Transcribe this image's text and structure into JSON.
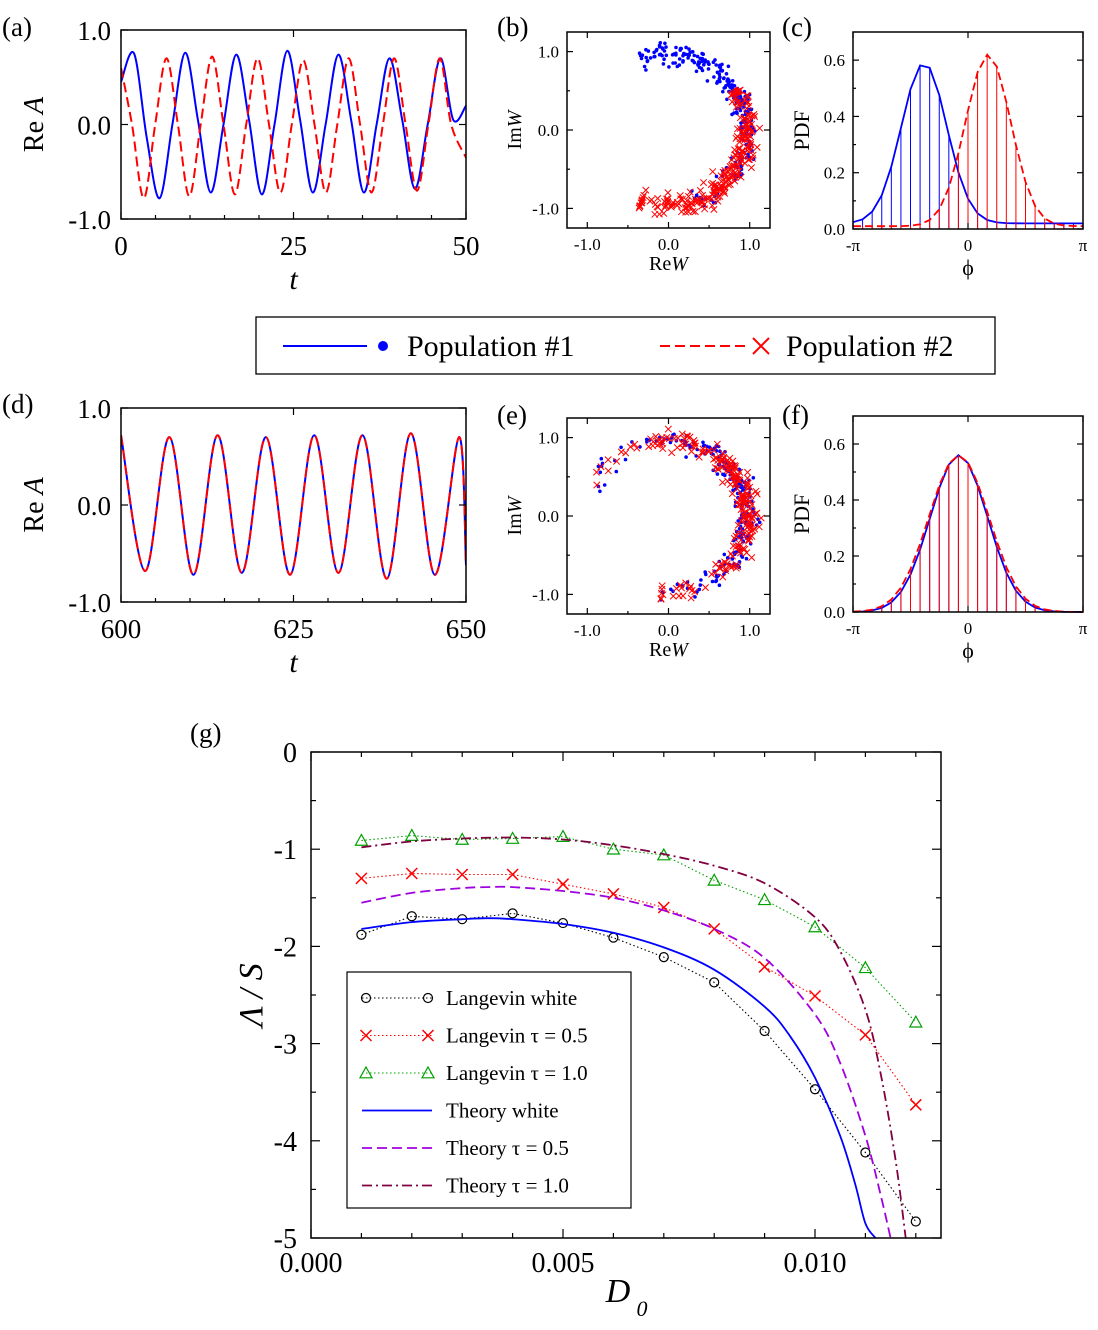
{
  "chart_data": [
    {
      "id": "a",
      "type": "line",
      "panel_label": "(a)",
      "xlabel": "t",
      "ylabel": "Re A",
      "xlim": [
        0,
        50
      ],
      "ylim": [
        -1.0,
        1.0
      ],
      "xticks": [
        "0",
        "25",
        "50"
      ],
      "yticks": [
        "1.0",
        "0.0",
        "-1.0"
      ],
      "series": [
        {
          "name": "Population #1",
          "color": "#0000ff",
          "dash": "solid",
          "x": [
            0,
            1.9,
            3.75,
            5.6,
            7.45,
            9.3,
            11.15,
            13.0,
            14.85,
            16.7,
            18.55,
            20.4,
            22.25,
            24.1,
            25.95,
            27.8,
            29.65,
            31.5,
            33.35,
            35.2,
            37.05,
            38.9,
            40.75,
            42.6,
            44.45,
            46.3,
            48.15,
            50
          ],
          "y": [
            0.45,
            0.75,
            -0.15,
            -0.78,
            0.0,
            0.76,
            0.05,
            -0.72,
            0.0,
            0.74,
            0.05,
            -0.74,
            0.0,
            0.78,
            0.05,
            -0.72,
            0.0,
            0.74,
            0.05,
            -0.72,
            0.0,
            0.7,
            0.05,
            -0.68,
            0.0,
            0.7,
            0.05,
            0.2
          ]
        },
        {
          "name": "Population #2",
          "color": "#ff0000",
          "dash": "dashed",
          "x": [
            0,
            1.6,
            3.3,
            4.95,
            6.6,
            8.25,
            9.9,
            11.55,
            13.2,
            14.85,
            16.5,
            18.15,
            19.8,
            21.45,
            23.1,
            24.75,
            26.4,
            28.05,
            29.7,
            31.35,
            33.0,
            34.65,
            36.3,
            37.95,
            39.6,
            41.25,
            42.9,
            44.55,
            46.2,
            47.85,
            50
          ],
          "y": [
            0.6,
            0.0,
            -0.78,
            0.0,
            0.7,
            0.0,
            -0.76,
            0.0,
            0.72,
            0.0,
            -0.74,
            0.0,
            0.7,
            0.0,
            -0.72,
            0.0,
            0.68,
            0.0,
            -0.72,
            0.0,
            0.7,
            0.0,
            -0.72,
            0.0,
            0.7,
            0.0,
            -0.7,
            0.0,
            0.7,
            0.0,
            -0.35
          ]
        }
      ]
    },
    {
      "id": "b",
      "type": "scatter",
      "panel_label": "(b)",
      "xlabel": "ReW",
      "ylabel": "ImW",
      "xlim": [
        -1.25,
        1.25
      ],
      "ylim": [
        -1.25,
        1.25
      ],
      "xticks": [
        "-1.0",
        "0.0",
        "1.0"
      ],
      "yticks": [
        "1.0",
        "0.0",
        "-1.0"
      ],
      "series": [
        {
          "name": "Population #1",
          "color": "#0000ff",
          "marker": "dot",
          "count": 260,
          "arc_deg": [
            -70,
            110
          ],
          "center_deg": 35,
          "spread_deg": 30
        },
        {
          "name": "Population #2",
          "color": "#ff0000",
          "marker": "x",
          "count": 240,
          "arc_deg": [
            -110,
            30
          ],
          "center_deg": -40,
          "spread_deg": 35
        }
      ]
    },
    {
      "id": "c",
      "type": "line",
      "panel_label": "(c)",
      "xlabel": "ϕ",
      "ylabel": "PDF",
      "xlim": [
        -3.1416,
        3.1416
      ],
      "ylim": [
        0,
        0.7
      ],
      "xticks": [
        "-π",
        "0",
        "π"
      ],
      "yticks": [
        "0.6",
        "0.4",
        "0.2",
        "0.0"
      ],
      "series": [
        {
          "name": "Population #1",
          "color": "#0000ff",
          "dash": "solid",
          "mean": -1.2,
          "sigma": 0.62,
          "peak": 0.59,
          "base": 0.02
        },
        {
          "name": "Population #2",
          "color": "#ff0000",
          "dash": "dashed",
          "mean": 0.55,
          "sigma": 0.62,
          "peak": 0.62,
          "base": 0.01
        }
      ]
    },
    {
      "id": "d",
      "type": "line",
      "panel_label": "(d)",
      "xlabel": "t",
      "ylabel": "Re A",
      "xlim": [
        600,
        650
      ],
      "ylim": [
        -1.0,
        1.0
      ],
      "xticks": [
        "600",
        "625",
        "650"
      ],
      "yticks": [
        "1.0",
        "0.0",
        "-1.0"
      ],
      "series": [
        {
          "name": "Population #1",
          "color": "#0000ff",
          "dash": "solid",
          "x": [
            600,
            603.5,
            607.0,
            610.5,
            614.0,
            617.5,
            621.0,
            624.5,
            628.0,
            631.5,
            635.0,
            638.5,
            642.0,
            645.5,
            649.0,
            650
          ],
          "y": [
            0.72,
            -0.68,
            0.7,
            -0.72,
            0.72,
            -0.7,
            0.7,
            -0.72,
            0.72,
            -0.7,
            0.72,
            -0.76,
            0.74,
            -0.72,
            0.7,
            -0.62
          ]
        },
        {
          "name": "Population #2",
          "color": "#ff0000",
          "dash": "dashed",
          "x": [
            600,
            603.5,
            607.0,
            610.5,
            614.0,
            617.5,
            621.0,
            624.5,
            628.0,
            631.5,
            635.0,
            638.5,
            642.0,
            645.5,
            649.0,
            650
          ],
          "y": [
            0.72,
            -0.68,
            0.7,
            -0.72,
            0.72,
            -0.7,
            0.7,
            -0.72,
            0.72,
            -0.7,
            0.72,
            -0.76,
            0.74,
            -0.72,
            0.7,
            -0.62
          ]
        }
      ]
    },
    {
      "id": "e",
      "type": "scatter",
      "panel_label": "(e)",
      "xlabel": "ReW",
      "ylabel": "ImW",
      "xlim": [
        -1.25,
        1.25
      ],
      "ylim": [
        -1.25,
        1.25
      ],
      "xticks": [
        "-1.0",
        "0.0",
        "1.0"
      ],
      "yticks": [
        "1.0",
        "0.0",
        "-1.0"
      ],
      "series": [
        {
          "name": "Population #1",
          "color": "#0000ff",
          "marker": "dot",
          "count": 230,
          "arc_deg": [
            -95,
            160
          ],
          "center_deg": 5,
          "spread_deg": 35
        },
        {
          "name": "Population #2",
          "color": "#ff0000",
          "marker": "x",
          "count": 230,
          "arc_deg": [
            -95,
            160
          ],
          "center_deg": 5,
          "spread_deg": 35
        }
      ]
    },
    {
      "id": "f",
      "type": "line",
      "panel_label": "(f)",
      "xlabel": "ϕ",
      "ylabel": "PDF",
      "xlim": [
        -3.1416,
        3.1416
      ],
      "ylim": [
        0,
        0.7
      ],
      "xticks": [
        "-π",
        "0",
        "π"
      ],
      "yticks": [
        "0.6",
        "0.4",
        "0.2",
        "0.0"
      ],
      "series": [
        {
          "name": "Population #1",
          "color": "#0000ff",
          "dash": "solid",
          "mean": -0.25,
          "sigma": 0.78,
          "peak": 0.56,
          "base": 0.0
        },
        {
          "name": "Population #2",
          "color": "#ff0000",
          "dash": "dashed",
          "mean": -0.25,
          "sigma": 0.82,
          "peak": 0.56,
          "base": 0.0
        }
      ]
    },
    {
      "id": "g",
      "type": "line",
      "panel_label": "(g)",
      "xlabel": "D",
      "xlabel_sub": "0",
      "ylabel": "Λ / S",
      "xlim": [
        0.0,
        0.0125
      ],
      "ylim": [
        -5,
        0
      ],
      "xticks": [
        {
          "v": 0.0,
          "label": "0.000"
        },
        {
          "v": 0.005,
          "label": "0.005"
        },
        {
          "v": 0.01,
          "label": "0.010"
        }
      ],
      "yticks": [
        {
          "v": 0,
          "label": "0"
        },
        {
          "v": -1,
          "label": "-1"
        },
        {
          "v": -2,
          "label": "-2"
        },
        {
          "v": -3,
          "label": "-3"
        },
        {
          "v": -4,
          "label": "-4"
        },
        {
          "v": -5,
          "label": "-5"
        }
      ],
      "legend_position": "bottom-left",
      "series": [
        {
          "name": "Langevin white",
          "color": "#000000",
          "marker": "circle",
          "line": "dotted",
          "x": [
            0.001,
            0.002,
            0.003,
            0.004,
            0.005,
            0.006,
            0.007,
            0.008,
            0.009,
            0.01,
            0.011,
            0.012
          ],
          "y": [
            -1.88,
            -1.69,
            -1.72,
            -1.66,
            -1.76,
            -1.91,
            -2.11,
            -2.37,
            -2.87,
            -3.47,
            -4.12,
            -4.83
          ]
        },
        {
          "name": "Langevin τ = 0.5",
          "color": "#ff0000",
          "marker": "x",
          "line": "dotted",
          "x": [
            0.001,
            0.002,
            0.003,
            0.004,
            0.005,
            0.006,
            0.007,
            0.008,
            0.009,
            0.01,
            0.011,
            0.012
          ],
          "y": [
            -1.3,
            -1.25,
            -1.26,
            -1.26,
            -1.36,
            -1.46,
            -1.6,
            -1.82,
            -2.21,
            -2.51,
            -2.91,
            -3.63
          ]
        },
        {
          "name": "Langevin τ = 1.0",
          "color": "#00a000",
          "marker": "triangle",
          "line": "dotted",
          "x": [
            0.001,
            0.002,
            0.003,
            0.004,
            0.005,
            0.006,
            0.007,
            0.008,
            0.009,
            0.01,
            0.011,
            0.012
          ],
          "y": [
            -0.91,
            -0.86,
            -0.9,
            -0.89,
            -0.87,
            -1.0,
            -1.06,
            -1.32,
            -1.52,
            -1.8,
            -2.22,
            -2.78
          ]
        },
        {
          "name": "Theory white",
          "color": "#0000ff",
          "marker": "none",
          "line": "solid",
          "x": [
            0.001,
            0.002,
            0.003,
            0.0035,
            0.004,
            0.005,
            0.006,
            0.007,
            0.008,
            0.009,
            0.0095,
            0.01,
            0.0105,
            0.0108,
            0.011,
            0.0112
          ],
          "y": [
            -1.82,
            -1.75,
            -1.72,
            -1.71,
            -1.72,
            -1.77,
            -1.86,
            -2.01,
            -2.24,
            -2.62,
            -2.92,
            -3.35,
            -3.95,
            -4.45,
            -4.85,
            -5.0
          ]
        },
        {
          "name": "Theory τ = 0.5",
          "color": "#a000e0",
          "marker": "none",
          "line": "dashed",
          "x": [
            0.001,
            0.002,
            0.003,
            0.0035,
            0.004,
            0.005,
            0.006,
            0.007,
            0.008,
            0.009,
            0.01,
            0.0105,
            0.011,
            0.0113,
            0.0115
          ],
          "y": [
            -1.55,
            -1.45,
            -1.4,
            -1.39,
            -1.39,
            -1.43,
            -1.5,
            -1.63,
            -1.82,
            -2.12,
            -2.7,
            -3.2,
            -3.95,
            -4.55,
            -5.0
          ]
        },
        {
          "name": "Theory τ = 1.0",
          "color": "#800040",
          "marker": "none",
          "line": "dashdot",
          "x": [
            0.001,
            0.002,
            0.003,
            0.004,
            0.005,
            0.006,
            0.007,
            0.008,
            0.009,
            0.01,
            0.0105,
            0.011,
            0.0113,
            0.0116,
            0.0118
          ],
          "y": [
            -0.98,
            -0.92,
            -0.89,
            -0.88,
            -0.9,
            -0.96,
            -1.05,
            -1.17,
            -1.35,
            -1.7,
            -2.05,
            -2.65,
            -3.3,
            -4.2,
            -5.0
          ]
        }
      ]
    }
  ],
  "legend_top": {
    "items": [
      {
        "label": "Population #1",
        "color": "#0000ff",
        "line": "solid",
        "marker": "dot"
      },
      {
        "label": "Population #2",
        "color": "#ff0000",
        "line": "dashed",
        "marker": "x"
      }
    ]
  }
}
